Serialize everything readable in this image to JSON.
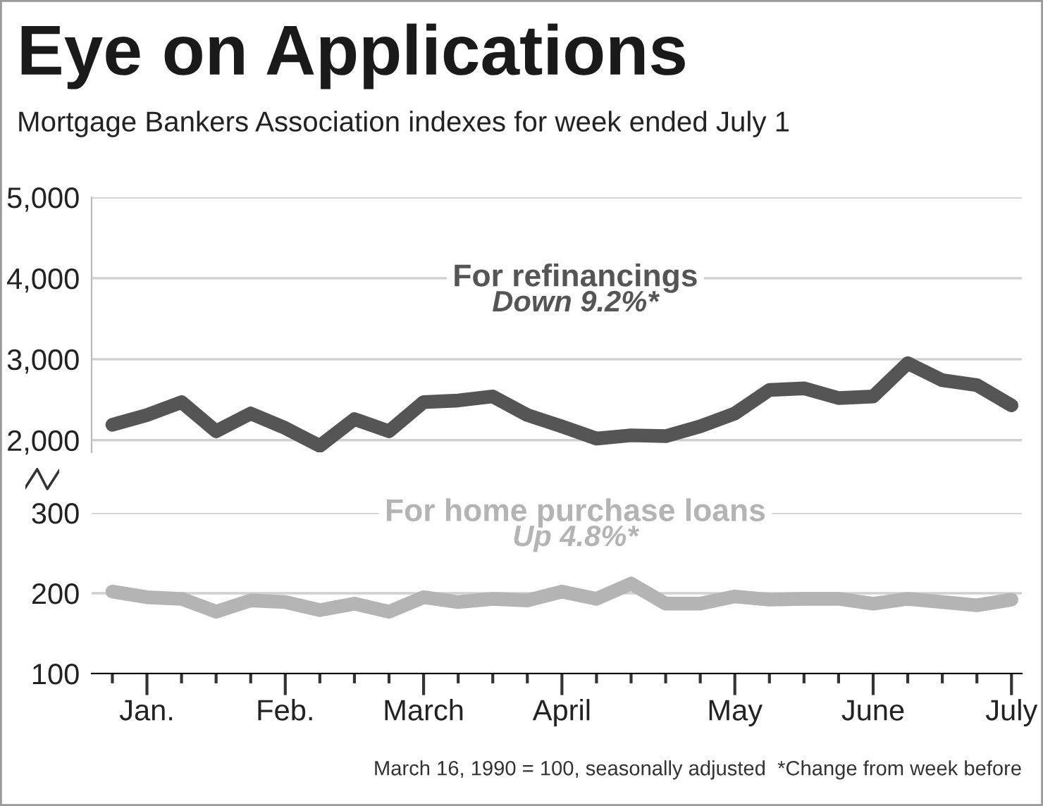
{
  "chart_data": [
    {
      "type": "line",
      "title": "Eye on Applications",
      "subtitle": "Mortgage Bankers Association indexes for week ended July 1",
      "categories": [
        null,
        null,
        null,
        null,
        null,
        null,
        null,
        null,
        null,
        null,
        null,
        null,
        null,
        null,
        null,
        null,
        null,
        null,
        null,
        null,
        null,
        null,
        null,
        null,
        null,
        null,
        null
      ],
      "tick_labels": "y",
      "ylim": [
        1850,
        5000
      ],
      "yticks": [
        {
          "value": 2000,
          "label": "2,000"
        },
        {
          "value": 3000,
          "label": "3,000"
        },
        {
          "value": 4000,
          "label": "4,000"
        },
        {
          "value": 5000,
          "label": "5,000"
        }
      ],
      "grid": "y",
      "annotations": [
        "Down 9.2%*"
      ],
      "series": [
        {
          "name": "For refinancings",
          "color": "#555555",
          "values": [
            2190,
            2310,
            2470,
            2110,
            2330,
            2150,
            1930,
            2260,
            2110,
            2470,
            2490,
            2540,
            2310,
            2170,
            2020,
            2060,
            2050,
            2170,
            2330,
            2620,
            2640,
            2520,
            2540,
            2950,
            2740,
            2680,
            2430
          ]
        }
      ]
    },
    {
      "type": "line",
      "categories": [
        null,
        "Jan.",
        null,
        null,
        null,
        "Feb.",
        null,
        null,
        null,
        "March",
        null,
        null,
        null,
        "April",
        null,
        null,
        null,
        null,
        "May",
        null,
        null,
        null,
        "June",
        null,
        null,
        null,
        "July"
      ],
      "ylim": [
        100,
        300
      ],
      "yticks": [
        100,
        200,
        300
      ],
      "grid": "y",
      "annotations": [
        "Up 4.8%*",
        "March 16, 1990 = 100, seasonally adjusted  *Change from week before"
      ],
      "series": [
        {
          "name": "For home purchase loans",
          "color": "#b4b4b4",
          "values": [
            202,
            195,
            193,
            177,
            191,
            189,
            179,
            187,
            177,
            195,
            189,
            193,
            191,
            202,
            193,
            212,
            187,
            187,
            196,
            192,
            193,
            193,
            187,
            193,
            189,
            185,
            192
          ]
        }
      ]
    }
  ]
}
